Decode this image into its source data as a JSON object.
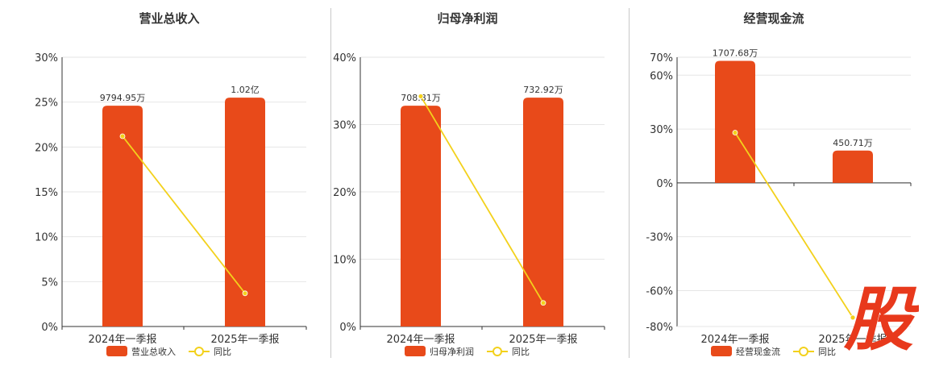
{
  "colors": {
    "bar": "#e84a1a",
    "line": "#f3d11c",
    "grid": "#e6e6e6",
    "axis": "#333333",
    "watermark": "#e8391c"
  },
  "watermark": {
    "glyph": "股"
  },
  "chart_data": [
    {
      "type": "bar",
      "title": "营业总收入",
      "categories": [
        "2024年一季报",
        "2025年一季报"
      ],
      "series": [
        {
          "name": "营业总收入",
          "kind": "bar",
          "values": [
            24.6,
            25.5
          ],
          "labels": [
            "9794.95万",
            "1.02亿"
          ]
        },
        {
          "name": "同比",
          "kind": "line",
          "values": [
            21.2,
            3.7
          ]
        }
      ],
      "ylim": [
        0,
        30
      ],
      "yticks": [
        0,
        5,
        10,
        15,
        20,
        25,
        30
      ],
      "ytick_labels": [
        "0%",
        "5%",
        "10%",
        "15%",
        "20%",
        "25%",
        "30%"
      ],
      "grid": true,
      "legend": "bottom"
    },
    {
      "type": "bar",
      "title": "归母净利润",
      "categories": [
        "2024年一季报",
        "2025年一季报"
      ],
      "series": [
        {
          "name": "归母净利润",
          "kind": "bar",
          "values": [
            32.8,
            34.0
          ],
          "labels": [
            "708.81万",
            "732.92万"
          ]
        },
        {
          "name": "同比",
          "kind": "line",
          "values": [
            34.2,
            3.5
          ]
        }
      ],
      "ylim": [
        0,
        40
      ],
      "yticks": [
        0,
        10,
        20,
        30,
        40
      ],
      "ytick_labels": [
        "0%",
        "10%",
        "20%",
        "30%",
        "40%"
      ],
      "grid": true,
      "legend": "bottom"
    },
    {
      "type": "bar",
      "title": "经营现金流",
      "categories": [
        "2024年一季报",
        "2025年一季报"
      ],
      "series": [
        {
          "name": "经营现金流",
          "kind": "bar",
          "values": [
            68.0,
            18.0
          ],
          "labels": [
            "1707.68万",
            "450.71万"
          ]
        },
        {
          "name": "同比",
          "kind": "line",
          "values": [
            28.0,
            -75.0
          ]
        }
      ],
      "ylim": [
        -80,
        70
      ],
      "yticks": [
        -80,
        -60,
        -30,
        0,
        30,
        60,
        70
      ],
      "ytick_labels": [
        "-80%",
        "-60%",
        "-30%",
        "0%",
        "30%",
        "60%",
        "70%"
      ],
      "grid": true,
      "legend": "bottom"
    }
  ]
}
